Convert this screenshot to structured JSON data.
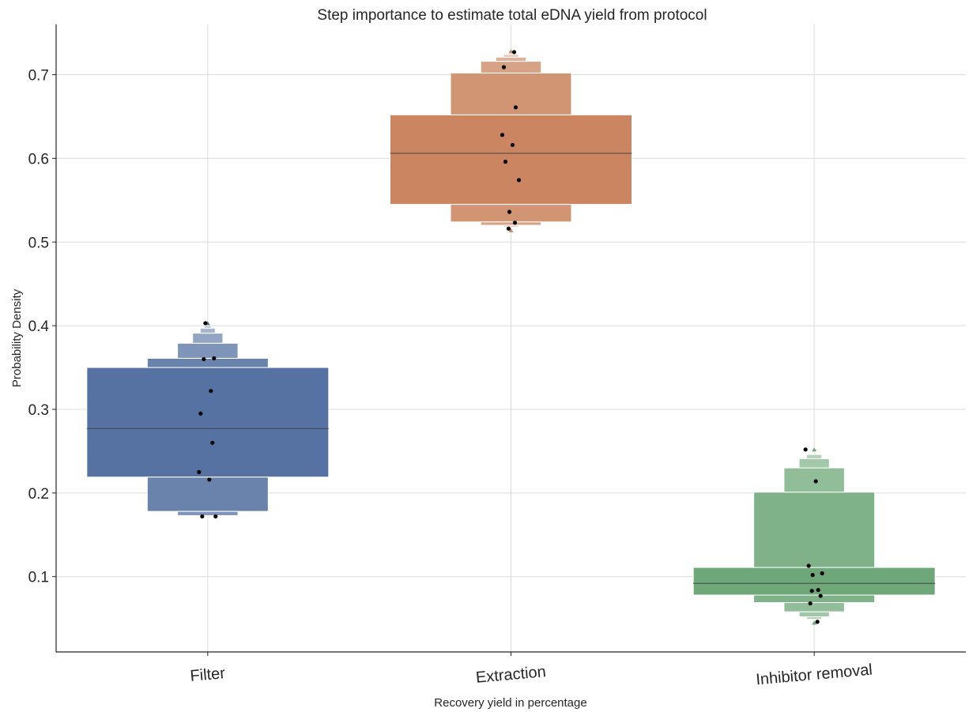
{
  "chart_data": {
    "type": "boxen",
    "title": "Step importance to estimate total eDNA yield from protocol",
    "xlabel": "Recovery yield in percentage",
    "ylabel": "Probability Density",
    "ylim": [
      0.01,
      0.76
    ],
    "yticks": [
      0.1,
      0.2,
      0.3,
      0.4,
      0.5,
      0.6,
      0.7
    ],
    "grid": true,
    "categories": [
      "Filter",
      "Extraction",
      "Inhibitor removal"
    ],
    "colors": [
      "#5572a2",
      "#cb8661",
      "#6ea879"
    ],
    "series": [
      {
        "category": "Filter",
        "median": 0.277,
        "boxes": [
          {
            "lo": 0.219,
            "hi": 0.35,
            "width": 1.0
          },
          {
            "lo": 0.178,
            "hi": 0.219,
            "width": 0.5
          },
          {
            "lo": 0.35,
            "hi": 0.361,
            "width": 0.5
          },
          {
            "lo": 0.173,
            "hi": 0.178,
            "width": 0.25
          },
          {
            "lo": 0.361,
            "hi": 0.379,
            "width": 0.25
          },
          {
            "lo": 0.379,
            "hi": 0.391,
            "width": 0.125
          },
          {
            "lo": 0.391,
            "hi": 0.397,
            "width": 0.0625
          },
          {
            "lo": 0.397,
            "hi": 0.4,
            "width": 0.03
          }
        ],
        "outliers": [
          0.403
        ],
        "points": [
          0.403,
          0.361,
          0.36,
          0.322,
          0.295,
          0.26,
          0.225,
          0.216,
          0.172,
          0.172
        ]
      },
      {
        "category": "Extraction",
        "median": 0.606,
        "boxes": [
          {
            "lo": 0.545,
            "hi": 0.652,
            "width": 1.0
          },
          {
            "lo": 0.524,
            "hi": 0.545,
            "width": 0.5
          },
          {
            "lo": 0.652,
            "hi": 0.702,
            "width": 0.5
          },
          {
            "lo": 0.52,
            "hi": 0.524,
            "width": 0.25
          },
          {
            "lo": 0.702,
            "hi": 0.716,
            "width": 0.25
          },
          {
            "lo": 0.716,
            "hi": 0.721,
            "width": 0.125
          },
          {
            "lo": 0.721,
            "hi": 0.724,
            "width": 0.0625
          },
          {
            "lo": 0.518,
            "hi": 0.52,
            "width": 0.0625
          }
        ],
        "outliers": [
          0.728,
          0.514
        ],
        "points": [
          0.727,
          0.709,
          0.661,
          0.628,
          0.616,
          0.596,
          0.574,
          0.536,
          0.523,
          0.516
        ]
      },
      {
        "category": "Inhibitor removal",
        "median": 0.092,
        "boxes": [
          {
            "lo": 0.078,
            "hi": 0.111,
            "width": 1.0
          },
          {
            "lo": 0.069,
            "hi": 0.078,
            "width": 0.5
          },
          {
            "lo": 0.111,
            "hi": 0.201,
            "width": 0.5
          },
          {
            "lo": 0.058,
            "hi": 0.069,
            "width": 0.25
          },
          {
            "lo": 0.201,
            "hi": 0.23,
            "width": 0.25
          },
          {
            "lo": 0.052,
            "hi": 0.058,
            "width": 0.125
          },
          {
            "lo": 0.23,
            "hi": 0.241,
            "width": 0.125
          },
          {
            "lo": 0.241,
            "hi": 0.246,
            "width": 0.0625
          },
          {
            "lo": 0.049,
            "hi": 0.052,
            "width": 0.0625
          }
        ],
        "outliers": [
          0.252,
          0.045
        ],
        "points": [
          0.252,
          0.214,
          0.113,
          0.104,
          0.102,
          0.084,
          0.083,
          0.077,
          0.068,
          0.046
        ]
      }
    ]
  }
}
